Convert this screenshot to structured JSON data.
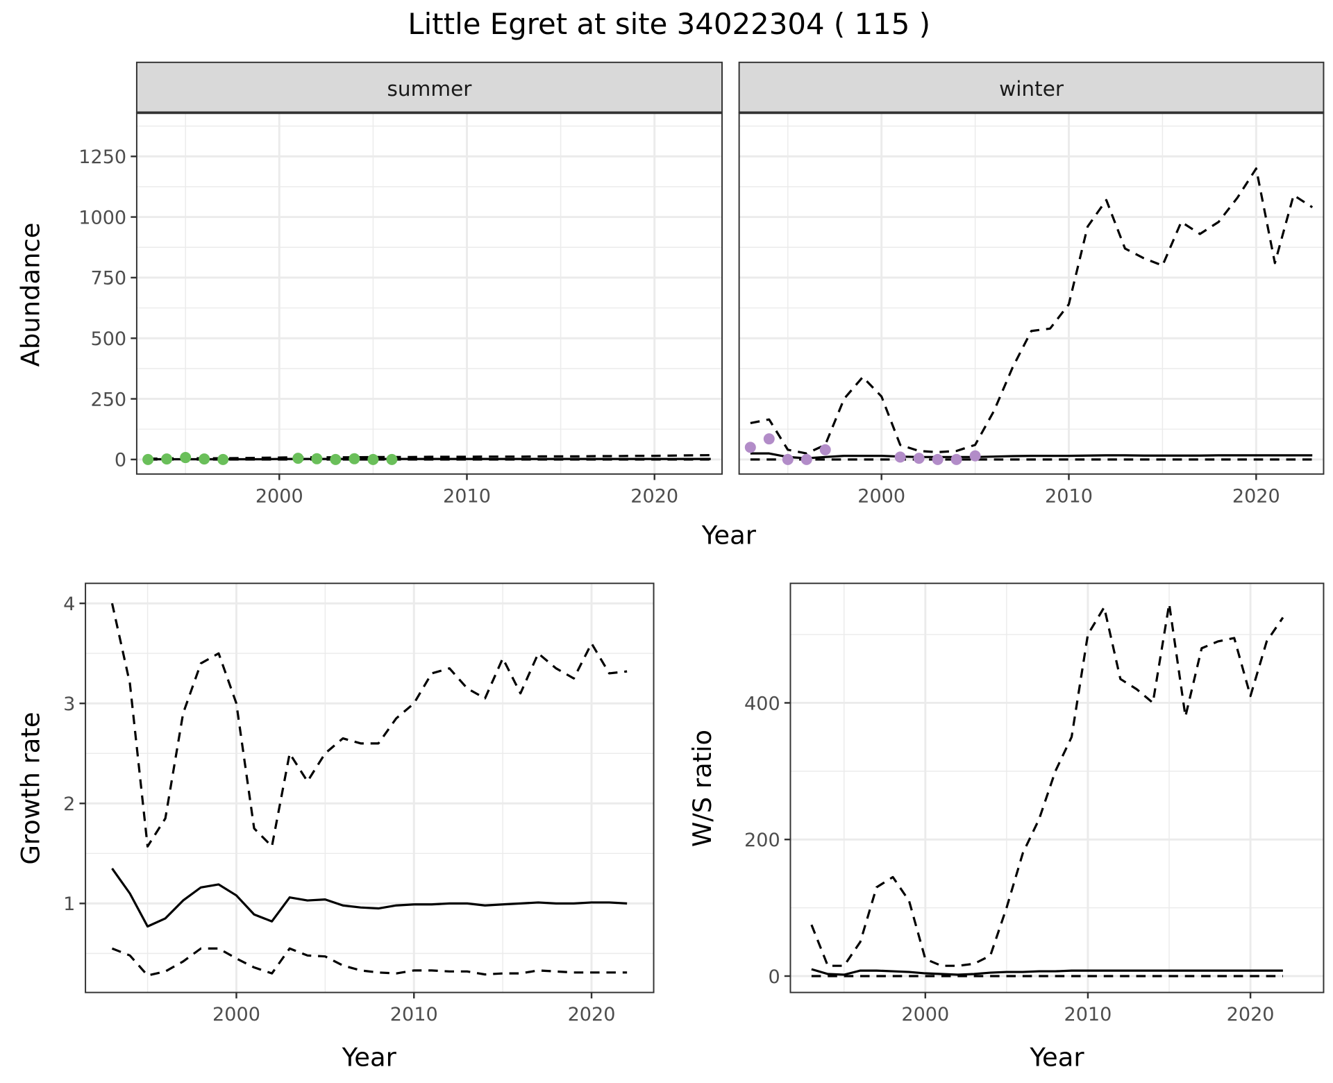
{
  "title": "Little Egret at site 34022304 ( 115 )",
  "colors": {
    "summer_points": "#6abf5a",
    "winter_points": "#b28cc8",
    "lines": "#000000",
    "grid": "#ebebeb",
    "strip": "#d9d9d9"
  },
  "chart_data": [
    {
      "id": "summer",
      "type": "line",
      "strip_label": "summer",
      "xlabel": "Year",
      "ylabel": "Abundance",
      "xlim": [
        1992.4,
        2023.6
      ],
      "ylim": [
        -60,
        1430
      ],
      "xticks": [
        2000,
        2010,
        2020
      ],
      "yticks": [
        0,
        250,
        500,
        750,
        1000,
        1250
      ],
      "show_yticks": true,
      "x": [
        1993,
        1994,
        1995,
        1996,
        1997,
        1998,
        1999,
        2000,
        2001,
        2002,
        2003,
        2004,
        2005,
        2006,
        2007,
        2008,
        2009,
        2010,
        2011,
        2012,
        2013,
        2014,
        2015,
        2016,
        2017,
        2018,
        2019,
        2020,
        2021,
        2022,
        2023
      ],
      "series": [
        {
          "name": "upper",
          "style": "dashed",
          "values": [
            3,
            4,
            5,
            5,
            5,
            6,
            7,
            8,
            9,
            9,
            9,
            9,
            10,
            10,
            10,
            11,
            11,
            11,
            12,
            12,
            12,
            13,
            13,
            13,
            14,
            14,
            15,
            15,
            16,
            17,
            18
          ]
        },
        {
          "name": "mean",
          "style": "solid",
          "values": [
            1,
            1,
            1,
            1,
            1,
            1,
            1,
            2,
            2,
            2,
            2,
            2,
            2,
            2,
            2,
            2,
            2,
            2,
            2,
            2,
            2,
            2,
            2,
            2,
            2,
            2,
            2,
            2,
            2,
            2,
            2
          ]
        },
        {
          "name": "lower",
          "style": "dashed",
          "values": [
            0,
            0,
            0,
            0,
            0,
            0,
            0,
            0,
            0,
            0,
            0,
            0,
            0,
            0,
            0,
            0,
            0,
            0,
            0,
            0,
            0,
            0,
            0,
            0,
            0,
            0,
            0,
            0,
            0,
            0,
            0
          ]
        }
      ],
      "points": {
        "x": [
          1993,
          1994,
          1995,
          1996,
          1997,
          2001,
          2002,
          2003,
          2004,
          2005,
          2006
        ],
        "y": [
          0,
          2,
          8,
          2,
          0,
          5,
          3,
          0,
          3,
          0,
          0
        ]
      }
    },
    {
      "id": "winter",
      "type": "line",
      "strip_label": "winter",
      "xlabel": "",
      "ylabel": "",
      "xlim": [
        1992.4,
        2023.6
      ],
      "ylim": [
        -60,
        1430
      ],
      "xticks": [
        2000,
        2010,
        2020
      ],
      "yticks": [
        0,
        250,
        500,
        750,
        1000,
        1250
      ],
      "show_yticks": false,
      "x": [
        1993,
        1994,
        1995,
        1996,
        1997,
        1998,
        1999,
        2000,
        2001,
        2002,
        2003,
        2004,
        2005,
        2006,
        2007,
        2008,
        2009,
        2010,
        2011,
        2012,
        2013,
        2014,
        2015,
        2016,
        2017,
        2018,
        2019,
        2020,
        2021,
        2022,
        2023
      ],
      "series": [
        {
          "name": "upper",
          "style": "dashed",
          "values": [
            150,
            165,
            40,
            25,
            60,
            250,
            340,
            260,
            60,
            35,
            30,
            35,
            60,
            200,
            380,
            530,
            540,
            640,
            960,
            1070,
            870,
            830,
            800,
            980,
            930,
            980,
            1080,
            1200,
            810,
            1090,
            1040
          ]
        },
        {
          "name": "mean",
          "style": "solid",
          "values": [
            25,
            25,
            10,
            5,
            10,
            15,
            15,
            15,
            12,
            10,
            10,
            10,
            10,
            12,
            14,
            15,
            15,
            15,
            16,
            17,
            17,
            16,
            16,
            16,
            16,
            17,
            17,
            17,
            17,
            17,
            17
          ]
        },
        {
          "name": "lower",
          "style": "dashed",
          "values": [
            0,
            0,
            0,
            0,
            0,
            0,
            0,
            0,
            0,
            0,
            0,
            0,
            0,
            0,
            0,
            0,
            0,
            0,
            0,
            0,
            0,
            0,
            0,
            0,
            0,
            0,
            0,
            0,
            0,
            0,
            0
          ]
        }
      ],
      "points": {
        "x": [
          1993,
          1994,
          1995,
          1996,
          1997,
          2001,
          2002,
          2003,
          2004,
          2005
        ],
        "y": [
          50,
          85,
          0,
          0,
          40,
          10,
          5,
          0,
          0,
          15
        ]
      }
    },
    {
      "id": "growth",
      "type": "line",
      "xlabel": "Year",
      "ylabel": "Growth rate",
      "xlim": [
        1991.5,
        2023.5
      ],
      "ylim": [
        0.11,
        4.2
      ],
      "xticks": [
        2000,
        2010,
        2020
      ],
      "yticks": [
        1,
        2,
        3,
        4
      ],
      "show_yticks": true,
      "x": [
        1993,
        1994,
        1995,
        1996,
        1997,
        1998,
        1999,
        2000,
        2001,
        2002,
        2003,
        2004,
        2005,
        2006,
        2007,
        2008,
        2009,
        2010,
        2011,
        2012,
        2013,
        2014,
        2015,
        2016,
        2017,
        2018,
        2019,
        2020,
        2021,
        2022
      ],
      "series": [
        {
          "name": "upper",
          "style": "dashed",
          "values": [
            4.0,
            3.2,
            1.57,
            1.85,
            2.9,
            3.4,
            3.5,
            3.0,
            1.75,
            1.57,
            2.5,
            2.22,
            2.5,
            2.65,
            2.6,
            2.6,
            2.85,
            3.0,
            3.3,
            3.35,
            3.15,
            3.05,
            3.45,
            3.1,
            3.5,
            3.35,
            3.25,
            3.6,
            3.3,
            3.32
          ]
        },
        {
          "name": "mean",
          "style": "solid",
          "values": [
            1.35,
            1.1,
            0.77,
            0.85,
            1.03,
            1.16,
            1.19,
            1.08,
            0.89,
            0.82,
            1.06,
            1.03,
            1.04,
            0.98,
            0.96,
            0.95,
            0.98,
            0.99,
            0.99,
            1.0,
            1.0,
            0.98,
            0.99,
            1.0,
            1.01,
            1.0,
            1.0,
            1.01,
            1.01,
            1.0
          ]
        },
        {
          "name": "lower",
          "style": "dashed",
          "values": [
            0.55,
            0.48,
            0.28,
            0.32,
            0.42,
            0.55,
            0.55,
            0.45,
            0.36,
            0.3,
            0.55,
            0.48,
            0.47,
            0.38,
            0.33,
            0.31,
            0.3,
            0.33,
            0.33,
            0.32,
            0.32,
            0.29,
            0.3,
            0.3,
            0.33,
            0.32,
            0.31,
            0.31,
            0.31,
            0.31
          ]
        }
      ]
    },
    {
      "id": "ws",
      "type": "line",
      "xlabel": "Year",
      "ylabel": "W/S ratio",
      "xlim": [
        1991.7,
        2024.5
      ],
      "ylim": [
        -24,
        575
      ],
      "xticks": [
        2000,
        2010,
        2020
      ],
      "yticks": [
        0,
        200,
        400
      ],
      "show_yticks": true,
      "x": [
        1993,
        1994,
        1995,
        1996,
        1997,
        1998,
        1999,
        2000,
        2001,
        2002,
        2003,
        2004,
        2005,
        2006,
        2007,
        2008,
        2009,
        2010,
        2011,
        2012,
        2013,
        2014,
        2015,
        2016,
        2017,
        2018,
        2019,
        2020,
        2021,
        2022
      ],
      "series": [
        {
          "name": "upper",
          "style": "dashed",
          "values": [
            75,
            15,
            15,
            50,
            130,
            145,
            110,
            25,
            15,
            15,
            18,
            30,
            100,
            180,
            230,
            300,
            350,
            500,
            540,
            435,
            420,
            400,
            545,
            380,
            480,
            490,
            495,
            410,
            490,
            525
          ]
        },
        {
          "name": "mean",
          "style": "solid",
          "values": [
            10,
            3,
            2,
            8,
            8,
            7,
            6,
            4,
            3,
            2,
            3,
            5,
            6,
            6,
            7,
            7,
            8,
            8,
            8,
            8,
            8,
            8,
            8,
            8,
            8,
            8,
            8,
            8,
            8,
            8
          ]
        },
        {
          "name": "lower",
          "style": "dashed",
          "values": [
            0,
            0,
            0,
            0,
            0,
            0,
            0,
            0,
            0,
            0,
            0,
            0,
            0,
            0,
            0,
            0,
            0,
            0,
            0,
            0,
            0,
            0,
            0,
            0,
            0,
            0,
            0,
            0,
            0,
            0
          ]
        }
      ]
    }
  ],
  "shared_xlabel": "Year"
}
